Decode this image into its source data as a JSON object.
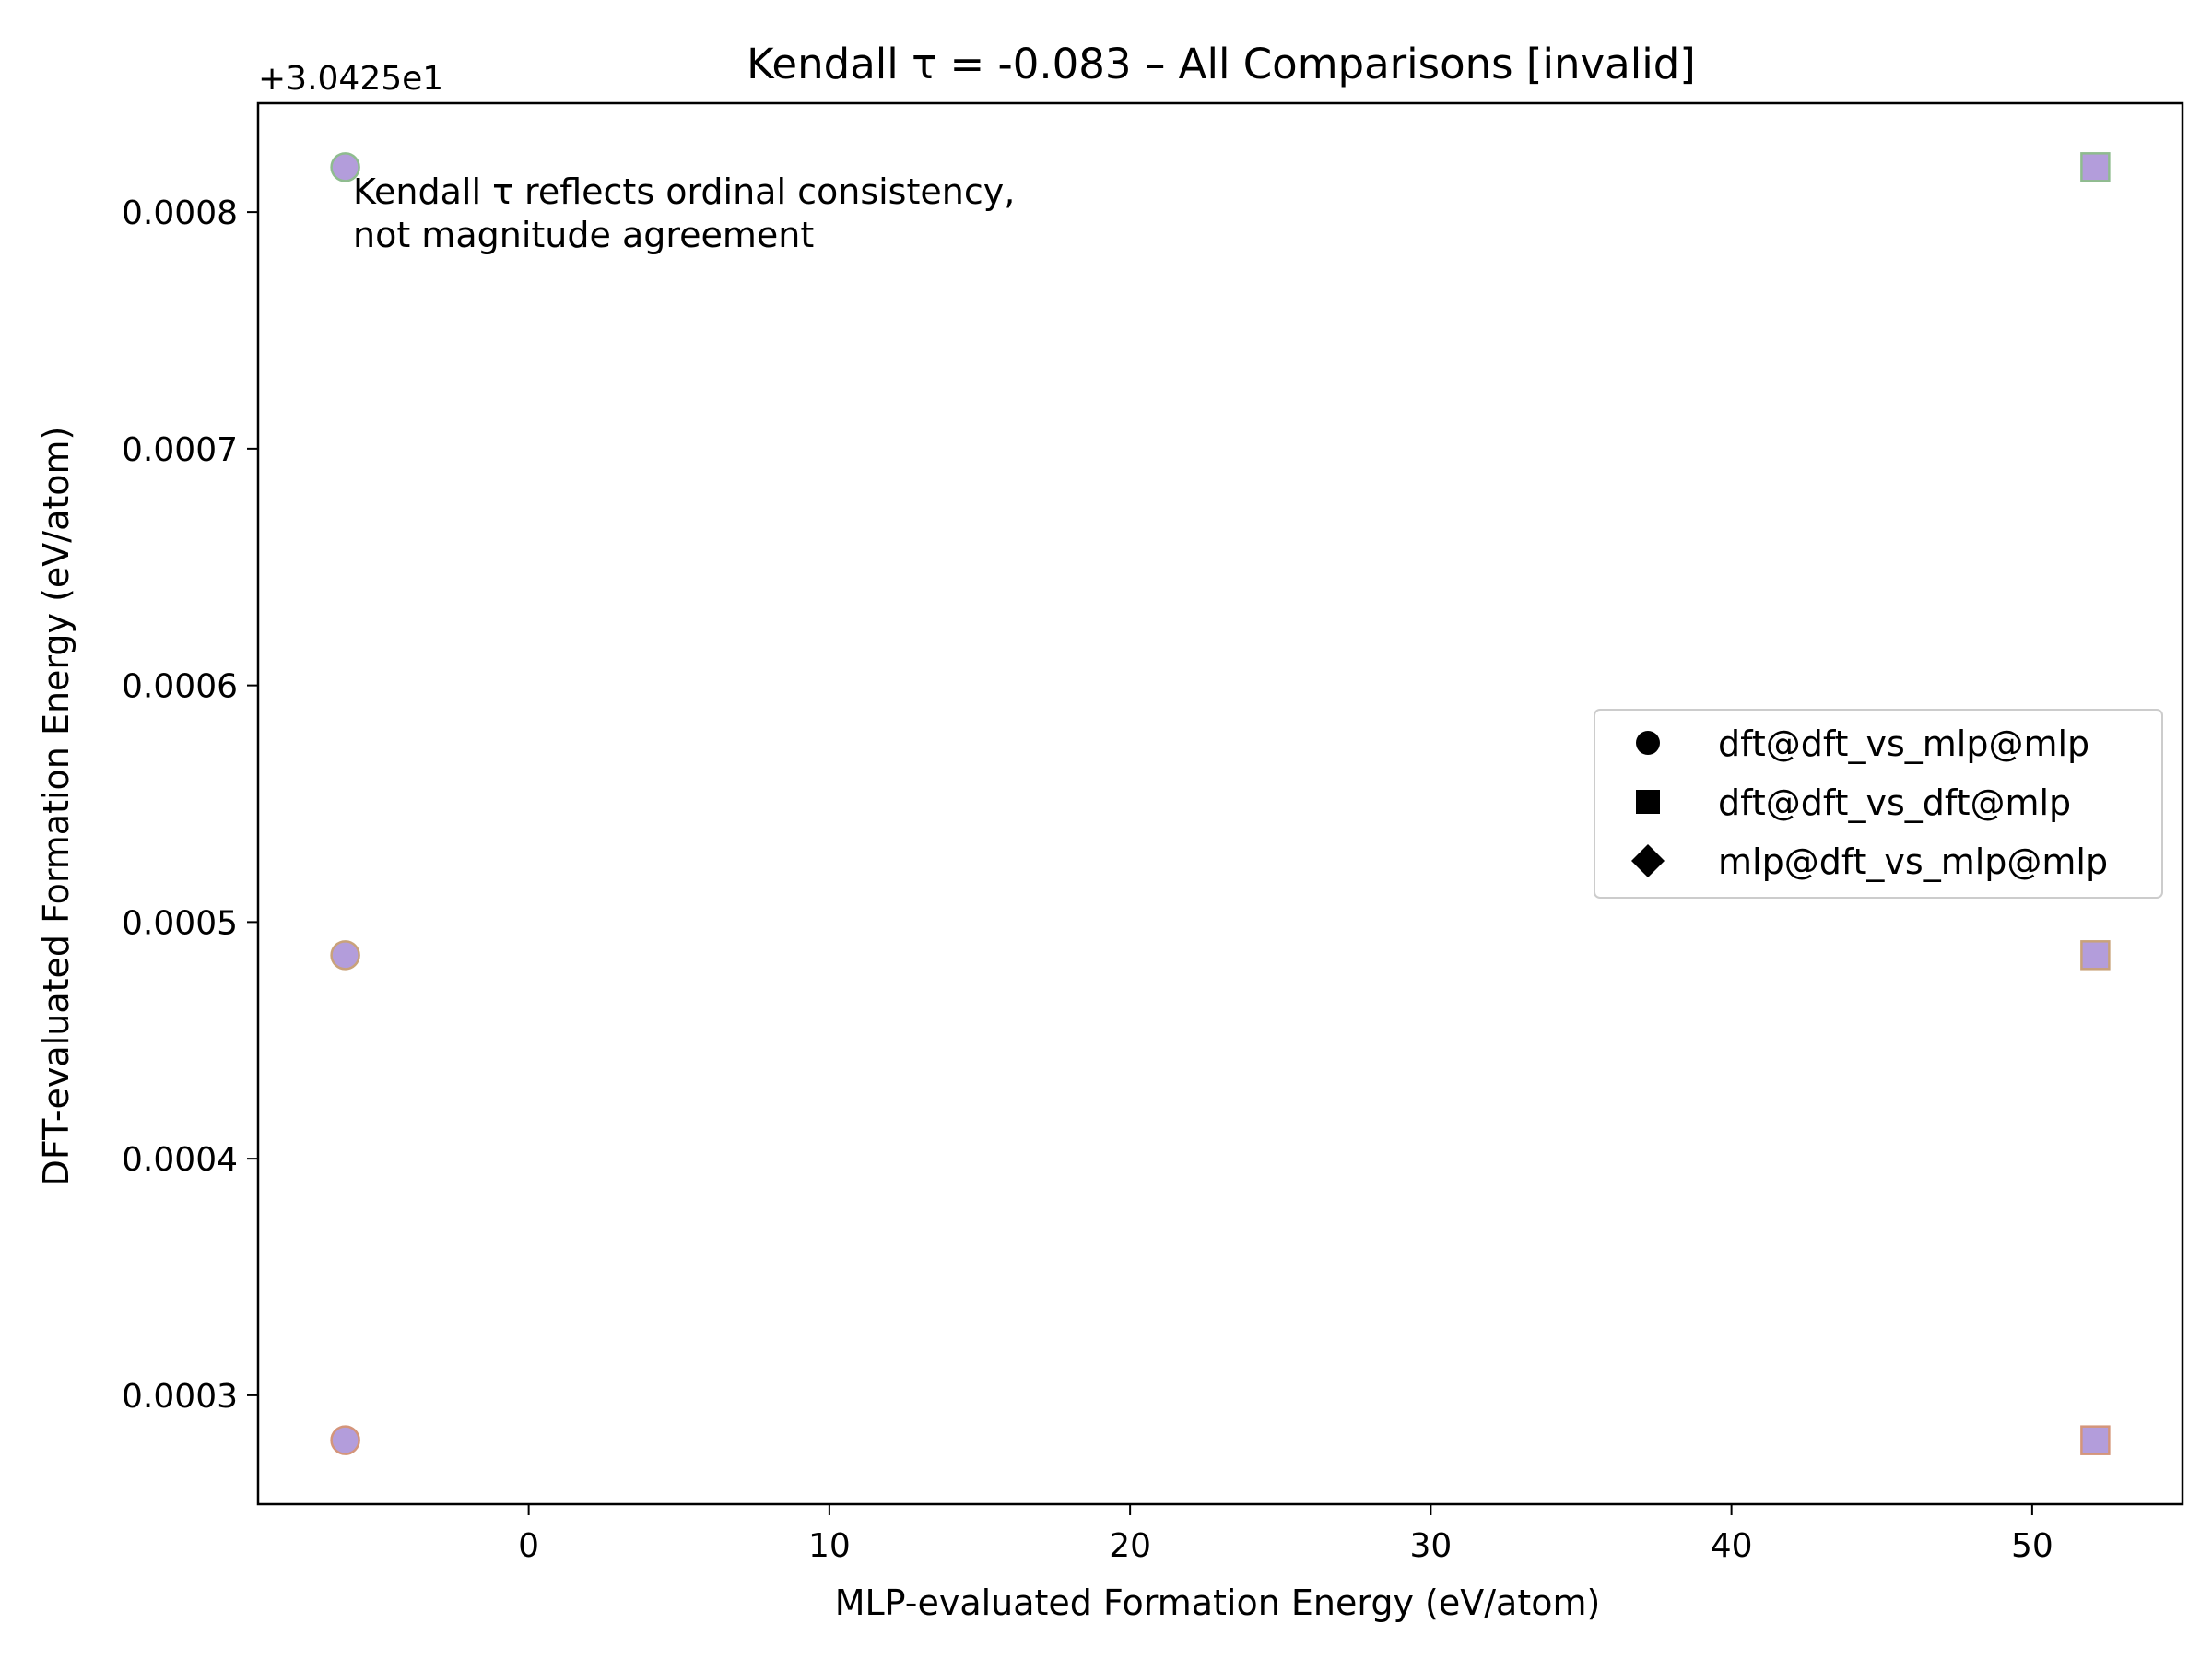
{
  "chart_data": {
    "type": "scatter",
    "title": "Kendall τ = -0.083 – All Comparisons [invalid]",
    "xlabel": "MLP-evaluated Formation Energy (eV/atom)",
    "ylabel": "DFT-evaluated Formation Energy (eV/atom)",
    "y_offset_text": "+3.0425e1",
    "xlim": [
      -9.0,
      55.0
    ],
    "ylim": [
      0.000254,
      0.000846
    ],
    "x_ticks": [
      0,
      10,
      20,
      30,
      40,
      50
    ],
    "x_tick_labels": [
      "0",
      "10",
      "20",
      "30",
      "40",
      "50"
    ],
    "y_ticks": [
      0.0003,
      0.0004,
      0.0005,
      0.0006,
      0.0007,
      0.0008
    ],
    "y_tick_labels": [
      "0.0003",
      "0.0004",
      "0.0005",
      "0.0006",
      "0.0007",
      "0.0008"
    ],
    "annotation": [
      "Kendall τ reflects ordinal consistency,",
      "not magnitude agreement"
    ],
    "legend_position": "center-right",
    "marker_fill": "#b39ddb",
    "series": [
      {
        "name": "dft@dft_vs_mlp@mlp",
        "marker": "circle",
        "points": [
          {
            "x": -6.1,
            "y": 0.000819,
            "edge": "#8fbc8f"
          },
          {
            "x": -6.1,
            "y": 0.000486,
            "edge": "#c9a27a"
          },
          {
            "x": -6.1,
            "y": 0.000281,
            "edge": "#d4957a"
          }
        ]
      },
      {
        "name": "dft@dft_vs_dft@mlp",
        "marker": "square",
        "points": [
          {
            "x": 52.1,
            "y": 0.000819,
            "edge": "#8fbc8f"
          },
          {
            "x": 52.1,
            "y": 0.000486,
            "edge": "#c9a27a"
          },
          {
            "x": 52.1,
            "y": 0.000281,
            "edge": "#d4957a"
          }
        ]
      },
      {
        "name": "mlp@dft_vs_mlp@mlp",
        "marker": "diamond",
        "points": []
      }
    ]
  }
}
